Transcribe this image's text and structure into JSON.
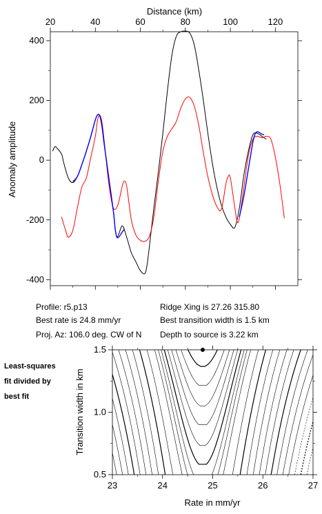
{
  "chart_data": [
    {
      "type": "line",
      "xlabel": "Distance (km)",
      "ylabel": "Anomaly amplitude",
      "xlim": [
        20,
        130
      ],
      "ylim": [
        -420,
        430
      ],
      "xticks": [
        20,
        40,
        60,
        80,
        100,
        120
      ],
      "yticks": [
        -400,
        -200,
        0,
        200,
        400
      ],
      "grid": false,
      "series": [
        {
          "color": "#000000",
          "x": [
            21,
            22,
            23,
            25,
            26,
            28,
            30,
            32,
            34,
            36,
            38,
            40,
            41,
            42,
            43,
            44,
            46,
            48,
            49,
            50,
            52,
            54,
            56,
            58,
            60,
            62,
            63,
            64,
            66,
            68,
            70,
            72,
            74,
            76,
            78,
            80,
            82,
            84,
            86,
            88,
            90,
            92,
            94,
            96,
            98,
            100,
            102,
            104,
            106,
            108,
            110,
            112,
            114,
            116
          ],
          "y": [
            30,
            45,
            40,
            20,
            -10,
            -60,
            -75,
            -55,
            -15,
            30,
            80,
            135,
            152,
            148,
            110,
            50,
            -60,
            -170,
            -240,
            -255,
            -220,
            -260,
            -310,
            -340,
            -370,
            -380,
            -350,
            -290,
            -160,
            -40,
            90,
            230,
            350,
            415,
            430,
            432,
            425,
            385,
            300,
            200,
            90,
            -10,
            -90,
            -150,
            -190,
            -215,
            -225,
            -160,
            -50,
            30,
            85,
            90,
            80,
            70
          ]
        },
        {
          "color": "#ff0000",
          "x": [
            25,
            27,
            28,
            30,
            32,
            34,
            36,
            38,
            40,
            41,
            42,
            43,
            44,
            46,
            48,
            50,
            52,
            53,
            54,
            56,
            58,
            60,
            62,
            64,
            66,
            68,
            70,
            72,
            74,
            76,
            78,
            80,
            82,
            84,
            86,
            88,
            90,
            92,
            94,
            96,
            98,
            99,
            100,
            102,
            103,
            104,
            106,
            108,
            110,
            112,
            114,
            116,
            118,
            120,
            122,
            124
          ],
          "y": [
            -190,
            -240,
            -258,
            -235,
            -160,
            -90,
            -60,
            10,
            80,
            135,
            150,
            125,
            60,
            -80,
            -160,
            -150,
            -85,
            -70,
            -90,
            -200,
            -250,
            -268,
            -272,
            -255,
            -190,
            -70,
            30,
            80,
            105,
            130,
            175,
            205,
            210,
            180,
            115,
            25,
            -55,
            -115,
            -155,
            -165,
            -80,
            -55,
            -60,
            -160,
            -205,
            -195,
            -90,
            15,
            70,
            80,
            75,
            80,
            70,
            10,
            -80,
            -195
          ]
        },
        {
          "color": "#0000ff",
          "x": [
            30,
            32,
            34,
            36,
            38,
            40,
            41,
            42,
            43,
            44,
            46,
            48,
            49,
            50,
            52,
            53
          ],
          "y": [
            -72,
            -55,
            -15,
            30,
            80,
            135,
            152,
            148,
            110,
            50,
            -60,
            -170,
            -240,
            -260,
            -240,
            -230
          ]
        },
        {
          "color": "#0000ff",
          "x": [
            104,
            106,
            108,
            110,
            111,
            112,
            113,
            114,
            115
          ],
          "y": [
            -190,
            -120,
            -30,
            60,
            88,
            95,
            92,
            87,
            85
          ]
        }
      ]
    },
    {
      "type": "contour",
      "xlabel": "Rate in mm/yr",
      "ylabel": "Transition width in km",
      "xlim": [
        23,
        27
      ],
      "ylim": [
        0.5,
        1.5
      ],
      "xticks": [
        23,
        24,
        25,
        26,
        27
      ],
      "yticks": [
        0.5,
        1.0,
        1.5
      ],
      "best_fit": {
        "x": 24.8,
        "y": 1.5
      },
      "grid": false
    }
  ],
  "info": {
    "profile": "Profile: r5.p13",
    "ridge_xing": "Ridge Xing is 27.26 315.80",
    "best_rate": "Best rate is 24.8 mm/yr",
    "best_width": "Best transition width is 1.5 km",
    "proj_az": "Proj. Az: 106.0 deg. CW of N",
    "depth": "Depth to source is   3.22 km"
  },
  "side_note": [
    "Least-squares",
    "fit divided by",
    "best fit"
  ]
}
